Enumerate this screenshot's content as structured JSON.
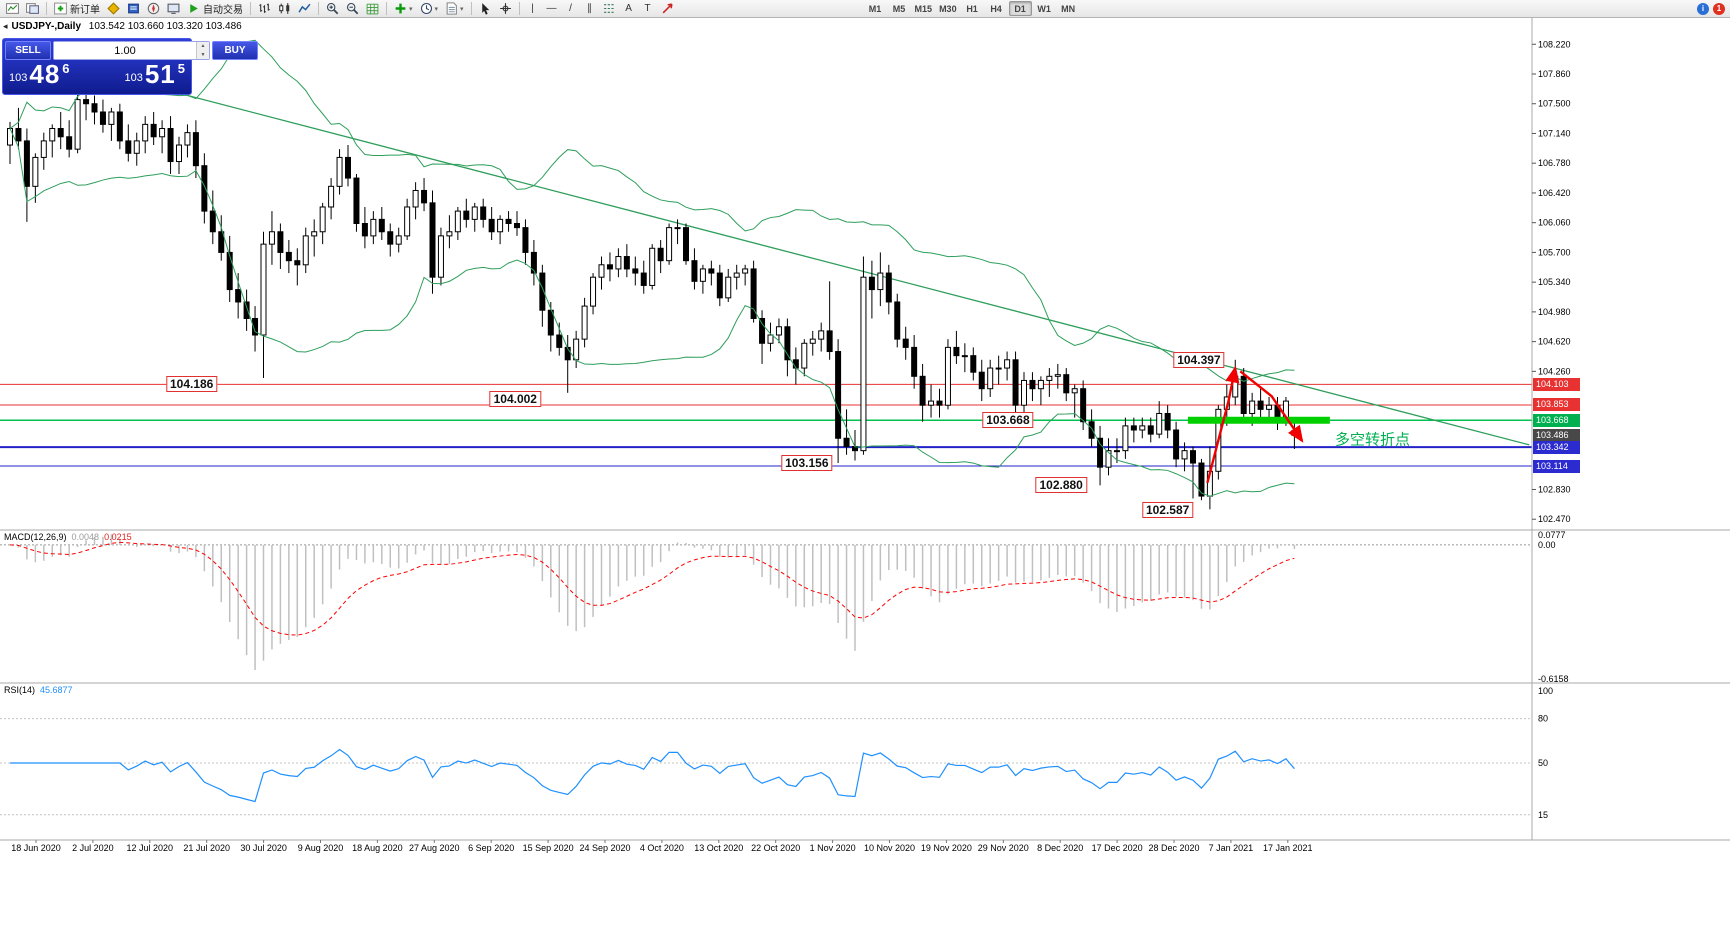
{
  "toolbar": {
    "items": [
      {
        "name": "new-chart-button",
        "kind": "svg",
        "icon": "chart-window"
      },
      {
        "name": "chart-profiles-button",
        "kind": "svg",
        "icon": "profiles"
      },
      {
        "name": "sep1",
        "kind": "sep"
      },
      {
        "name": "new-order-button",
        "kind": "labeled",
        "icon": "order",
        "label": "新订单"
      },
      {
        "name": "market-watch-button",
        "kind": "svg",
        "icon": "diamond"
      },
      {
        "name": "data-window-button",
        "kind": "svg",
        "icon": "databook"
      },
      {
        "name": "navigator-button",
        "kind": "svg",
        "icon": "compass"
      },
      {
        "name": "terminal-button",
        "kind": "svg",
        "icon": "terminal"
      },
      {
        "name": "autotrade-button",
        "kind": "labeled",
        "icon": "play",
        "label": "自动交易"
      },
      {
        "name": "sep2",
        "kind": "sep"
      },
      {
        "name": "bar-chart-button",
        "kind": "svg",
        "icon": "bars"
      },
      {
        "name": "candle-chart-button",
        "kind": "svg",
        "icon": "candles"
      },
      {
        "name": "line-chart-button",
        "kind": "svg",
        "icon": "polyline"
      },
      {
        "name": "sep3",
        "kind": "sep"
      },
      {
        "name": "zoom-in-button",
        "kind": "svg",
        "icon": "zoom-in"
      },
      {
        "name": "zoom-out-button",
        "kind": "svg",
        "icon": "zoom-out"
      },
      {
        "name": "tile-windows-button",
        "kind": "svg",
        "icon": "grid"
      },
      {
        "name": "sep4",
        "kind": "sep"
      },
      {
        "name": "indicators-button",
        "kind": "svg",
        "icon": "plus-green",
        "dd": true
      },
      {
        "name": "periods-button",
        "kind": "svg",
        "icon": "clock",
        "dd": true
      },
      {
        "name": "templates-button",
        "kind": "svg",
        "icon": "template",
        "dd": true
      },
      {
        "name": "sep5",
        "kind": "sep"
      },
      {
        "name": "cursor-button",
        "kind": "svg",
        "icon": "cursor"
      },
      {
        "name": "crosshair-button",
        "kind": "svg",
        "icon": "crosshair"
      },
      {
        "name": "sep6",
        "kind": "sep"
      },
      {
        "name": "vertical-line-button",
        "kind": "glyph",
        "glyph": "|"
      },
      {
        "name": "horizontal-line-button",
        "kind": "glyph",
        "glyph": "—"
      },
      {
        "name": "trendline-button",
        "kind": "glyph",
        "glyph": "/"
      },
      {
        "name": "channel-button",
        "kind": "glyph",
        "glyph": "∥"
      },
      {
        "name": "fibonacci-button",
        "kind": "svg",
        "icon": "fibo"
      },
      {
        "name": "text-button",
        "kind": "glyph",
        "glyph": "A"
      },
      {
        "name": "label-button",
        "kind": "glyph",
        "glyph": "T"
      },
      {
        "name": "arrows-button",
        "kind": "svg",
        "icon": "arrow-ne"
      }
    ],
    "timeframes": [
      "M1",
      "M5",
      "M15",
      "M30",
      "H1",
      "H4",
      "D1",
      "W1",
      "MN"
    ],
    "active_timeframe": "D1",
    "notification_count": "1"
  },
  "chart_header": {
    "symbol_period": "USDJPY-,Daily",
    "ohlc": "103.542 103.660 103.320 103.486"
  },
  "trade_panel": {
    "collapse_glyph": "◂",
    "sell_label": "SELL",
    "buy_label": "BUY",
    "volume": "1.00",
    "bid_prefix": "103",
    "bid_big": "48",
    "bid_sup": "6",
    "ask_prefix": "103",
    "ask_big": "51",
    "ask_sup": "5"
  },
  "price_axis": {
    "ticks": [
      "108.220",
      "107.860",
      "107.500",
      "107.140",
      "106.780",
      "106.420",
      "106.060",
      "105.700",
      "105.340",
      "104.980",
      "104.620",
      "104.260",
      "102.830",
      "102.470"
    ],
    "highlights": [
      {
        "text": "104.103",
        "bg": "#e83232"
      },
      {
        "text": "103.853",
        "bg": "#e83232"
      },
      {
        "text": "103.668",
        "bg": "#00b050"
      },
      {
        "text": "103.486",
        "bg": "#484848"
      },
      {
        "text": "103.342",
        "bg": "#2b2bd0"
      },
      {
        "text": "103.114",
        "bg": "#2b2bd0"
      }
    ]
  },
  "macd": {
    "label": "MACD(12,26,9)",
    "value_main": "0.0048",
    "value_signal": "0.0215",
    "axis": [
      "0.0777",
      "0.00",
      "-0.6158"
    ]
  },
  "rsi": {
    "label": "RSI(14)",
    "value": "45.6877",
    "axis_top": "100",
    "levels": [
      80,
      50,
      15
    ]
  },
  "date_axis": [
    "18 Jun 2020",
    "2 Jul 2020",
    "12 Jul 2020",
    "21 Jul 2020",
    "30 Jul 2020",
    "9 Aug 2020",
    "18 Aug 2020",
    "27 Aug 2020",
    "6 Sep 2020",
    "15 Sep 2020",
    "24 Sep 2020",
    "4 Oct 2020",
    "13 Oct 2020",
    "22 Oct 2020",
    "1 Nov 2020",
    "10 Nov 2020",
    "19 Nov 2020",
    "29 Nov 2020",
    "8 Dec 2020",
    "17 Dec 2020",
    "28 Dec 2020",
    "7 Jan 2021",
    "17 Jan 2021"
  ],
  "chart_data": {
    "type": "candlestick",
    "symbol": "USDJPY-",
    "period": "Daily",
    "current_ohlc": {
      "open": 103.542,
      "high": 103.66,
      "low": 103.32,
      "close": 103.486
    },
    "colors": {
      "bollinger": "#2e9e5b",
      "candle_up": "#ffffff",
      "candle_down": "#000000",
      "macd_hist": "#c0c0c0",
      "macd_signal": "#ff0000",
      "rsi_line": "#1e90ff",
      "annotation": "#f00000"
    },
    "candles": [
      [
        107.0,
        107.28,
        106.77,
        107.2
      ],
      [
        107.2,
        107.45,
        106.95,
        107.05
      ],
      [
        107.05,
        107.2,
        106.07,
        106.5
      ],
      [
        106.5,
        106.9,
        106.3,
        106.85
      ],
      [
        106.85,
        107.15,
        106.7,
        107.05
      ],
      [
        107.05,
        107.25,
        106.85,
        107.2
      ],
      [
        107.2,
        107.4,
        106.95,
        107.1
      ],
      [
        107.1,
        107.3,
        106.85,
        106.95
      ],
      [
        106.95,
        107.65,
        106.9,
        107.55
      ],
      [
        107.55,
        107.7,
        107.3,
        107.5
      ],
      [
        107.5,
        107.6,
        107.25,
        107.4
      ],
      [
        107.4,
        107.55,
        107.15,
        107.25
      ],
      [
        107.25,
        107.45,
        107.05,
        107.4
      ],
      [
        107.4,
        107.5,
        106.95,
        107.05
      ],
      [
        107.05,
        107.25,
        106.8,
        106.9
      ],
      [
        106.9,
        107.15,
        106.75,
        107.05
      ],
      [
        107.05,
        107.35,
        106.9,
        107.25
      ],
      [
        107.25,
        107.4,
        107.0,
        107.1
      ],
      [
        107.1,
        107.3,
        106.9,
        107.2
      ],
      [
        107.2,
        107.35,
        106.65,
        106.8
      ],
      [
        106.8,
        107.1,
        106.65,
        107.0
      ],
      [
        107.0,
        107.25,
        106.85,
        107.15
      ],
      [
        107.15,
        107.3,
        106.6,
        106.75
      ],
      [
        106.75,
        106.9,
        106.05,
        106.2
      ],
      [
        106.2,
        106.45,
        105.8,
        105.95
      ],
      [
        105.95,
        106.15,
        105.6,
        105.7
      ],
      [
        105.7,
        105.9,
        105.1,
        105.25
      ],
      [
        105.25,
        105.45,
        104.9,
        105.1
      ],
      [
        105.1,
        105.25,
        104.75,
        104.9
      ],
      [
        104.9,
        105.05,
        104.5,
        104.7
      ],
      [
        104.7,
        105.95,
        104.18,
        105.8
      ],
      [
        105.8,
        106.2,
        105.55,
        105.95
      ],
      [
        105.95,
        106.05,
        105.5,
        105.7
      ],
      [
        105.7,
        105.85,
        105.45,
        105.6
      ],
      [
        105.6,
        105.75,
        105.3,
        105.55
      ],
      [
        105.55,
        106.0,
        105.45,
        105.9
      ],
      [
        105.9,
        106.1,
        105.65,
        105.95
      ],
      [
        105.95,
        106.3,
        105.8,
        106.25
      ],
      [
        106.25,
        106.6,
        106.1,
        106.5
      ],
      [
        106.5,
        106.95,
        106.4,
        106.85
      ],
      [
        106.85,
        107.0,
        106.5,
        106.6
      ],
      [
        106.6,
        106.65,
        105.95,
        106.05
      ],
      [
        106.05,
        106.25,
        105.75,
        105.9
      ],
      [
        105.9,
        106.2,
        105.8,
        106.1
      ],
      [
        106.1,
        106.25,
        105.85,
        105.95
      ],
      [
        105.95,
        106.05,
        105.65,
        105.8
      ],
      [
        105.8,
        106.0,
        105.7,
        105.9
      ],
      [
        105.9,
        106.35,
        105.85,
        106.25
      ],
      [
        106.25,
        106.55,
        106.1,
        106.45
      ],
      [
        106.45,
        106.6,
        106.2,
        106.3
      ],
      [
        106.3,
        106.45,
        105.2,
        105.4
      ],
      [
        105.4,
        106.0,
        105.3,
        105.9
      ],
      [
        105.9,
        106.15,
        105.75,
        105.95
      ],
      [
        105.95,
        106.25,
        105.85,
        106.2
      ],
      [
        106.2,
        106.35,
        106.0,
        106.1
      ],
      [
        106.1,
        106.3,
        105.95,
        106.25
      ],
      [
        106.25,
        106.35,
        106.0,
        106.1
      ],
      [
        106.1,
        106.25,
        105.85,
        105.95
      ],
      [
        105.95,
        106.15,
        105.8,
        106.1
      ],
      [
        106.1,
        106.2,
        105.95,
        106.05
      ],
      [
        106.05,
        106.2,
        105.9,
        106.0
      ],
      [
        106.0,
        106.1,
        105.55,
        105.7
      ],
      [
        105.7,
        105.85,
        105.3,
        105.45
      ],
      [
        105.45,
        105.55,
        104.8,
        105.0
      ],
      [
        105.0,
        105.1,
        104.5,
        104.7
      ],
      [
        104.7,
        104.85,
        104.45,
        104.55
      ],
      [
        104.55,
        104.7,
        104.0,
        104.4
      ],
      [
        104.4,
        104.75,
        104.3,
        104.65
      ],
      [
        104.65,
        105.15,
        104.55,
        105.05
      ],
      [
        105.05,
        105.45,
        104.95,
        105.4
      ],
      [
        105.4,
        105.65,
        105.25,
        105.55
      ],
      [
        105.55,
        105.7,
        105.35,
        105.5
      ],
      [
        105.5,
        105.75,
        105.4,
        105.65
      ],
      [
        105.65,
        105.8,
        105.4,
        105.5
      ],
      [
        105.5,
        105.65,
        105.3,
        105.45
      ],
      [
        105.45,
        105.6,
        105.2,
        105.3
      ],
      [
        105.3,
        105.8,
        105.25,
        105.75
      ],
      [
        105.75,
        105.85,
        105.45,
        105.6
      ],
      [
        105.6,
        106.05,
        105.55,
        106.0
      ],
      [
        106.0,
        106.1,
        105.8,
        106.0
      ],
      [
        106.0,
        106.05,
        105.55,
        105.6
      ],
      [
        105.6,
        105.75,
        105.25,
        105.35
      ],
      [
        105.35,
        105.55,
        105.2,
        105.5
      ],
      [
        105.5,
        105.6,
        105.3,
        105.45
      ],
      [
        105.45,
        105.55,
        105.05,
        105.15
      ],
      [
        105.15,
        105.5,
        105.1,
        105.4
      ],
      [
        105.4,
        105.55,
        105.25,
        105.45
      ],
      [
        105.45,
        105.55,
        105.3,
        105.5
      ],
      [
        105.5,
        105.6,
        104.85,
        104.9
      ],
      [
        104.9,
        105.0,
        104.35,
        104.6
      ],
      [
        104.6,
        104.85,
        104.5,
        104.7
      ],
      [
        104.7,
        104.9,
        104.6,
        104.8
      ],
      [
        104.8,
        104.9,
        104.2,
        104.4
      ],
      [
        104.4,
        104.55,
        104.1,
        104.3
      ],
      [
        104.3,
        104.65,
        104.2,
        104.6
      ],
      [
        104.6,
        104.75,
        104.45,
        104.65
      ],
      [
        104.65,
        104.85,
        104.5,
        104.75
      ],
      [
        104.75,
        105.35,
        104.4,
        104.5
      ],
      [
        104.5,
        104.65,
        103.15,
        103.45
      ],
      [
        103.45,
        103.8,
        103.25,
        103.35
      ],
      [
        103.35,
        103.55,
        103.18,
        103.3
      ],
      [
        103.3,
        105.65,
        103.25,
        105.4
      ],
      [
        105.4,
        105.6,
        104.9,
        105.25
      ],
      [
        105.25,
        105.7,
        105.05,
        105.45
      ],
      [
        105.45,
        105.55,
        104.95,
        105.1
      ],
      [
        105.1,
        105.2,
        104.55,
        104.65
      ],
      [
        104.65,
        104.8,
        104.4,
        104.55
      ],
      [
        104.55,
        104.7,
        104.05,
        104.2
      ],
      [
        104.2,
        104.35,
        103.65,
        103.85
      ],
      [
        103.85,
        104.1,
        103.7,
        103.9
      ],
      [
        103.9,
        104.05,
        103.7,
        103.85
      ],
      [
        103.85,
        104.65,
        103.8,
        104.55
      ],
      [
        104.55,
        104.75,
        104.35,
        104.45
      ],
      [
        104.45,
        104.6,
        104.25,
        104.45
      ],
      [
        104.45,
        104.55,
        104.15,
        104.25
      ],
      [
        104.25,
        104.4,
        103.9,
        104.05
      ],
      [
        104.05,
        104.4,
        103.95,
        104.3
      ],
      [
        104.3,
        104.45,
        104.1,
        104.3
      ],
      [
        104.3,
        104.5,
        104.15,
        104.4
      ],
      [
        104.4,
        104.5,
        103.65,
        103.85
      ],
      [
        103.85,
        104.25,
        103.75,
        104.15
      ],
      [
        104.15,
        104.25,
        103.9,
        104.05
      ],
      [
        104.05,
        104.2,
        103.85,
        104.15
      ],
      [
        104.15,
        104.3,
        103.95,
        104.2
      ],
      [
        104.2,
        104.35,
        104.05,
        104.22
      ],
      [
        104.22,
        104.3,
        103.9,
        104.0
      ],
      [
        104.0,
        104.1,
        103.7,
        104.05
      ],
      [
        104.05,
        104.15,
        103.55,
        103.65
      ],
      [
        103.65,
        103.8,
        103.35,
        103.45
      ],
      [
        103.45,
        103.6,
        102.88,
        103.1
      ],
      [
        103.1,
        103.45,
        103.0,
        103.3
      ],
      [
        103.3,
        103.45,
        103.15,
        103.3
      ],
      [
        103.3,
        103.7,
        103.2,
        103.6
      ],
      [
        103.6,
        103.7,
        103.4,
        103.55
      ],
      [
        103.55,
        103.7,
        103.45,
        103.6
      ],
      [
        103.6,
        103.7,
        103.4,
        103.5
      ],
      [
        103.5,
        103.9,
        103.45,
        103.75
      ],
      [
        103.75,
        103.85,
        103.45,
        103.55
      ],
      [
        103.55,
        103.65,
        103.1,
        103.2
      ],
      [
        103.2,
        103.4,
        103.05,
        103.3
      ],
      [
        103.3,
        103.35,
        102.72,
        103.15
      ],
      [
        103.15,
        103.2,
        102.7,
        102.75
      ],
      [
        102.75,
        103.35,
        102.59,
        103.05
      ],
      [
        103.05,
        103.85,
        102.95,
        103.8
      ],
      [
        103.8,
        104.1,
        103.6,
        103.95
      ],
      [
        103.95,
        104.4,
        103.85,
        104.2
      ],
      [
        104.2,
        104.3,
        103.65,
        103.75
      ],
      [
        103.75,
        104.0,
        103.6,
        103.9
      ],
      [
        103.9,
        104.05,
        103.7,
        103.8
      ],
      [
        103.8,
        103.95,
        103.65,
        103.85
      ],
      [
        103.85,
        103.95,
        103.55,
        103.7
      ],
      [
        103.7,
        103.95,
        103.6,
        103.9
      ],
      [
        103.542,
        103.66,
        103.32,
        103.486
      ]
    ],
    "bollinger": {
      "period": 20,
      "deviation": 2
    },
    "hlines": [
      {
        "price": 104.103,
        "color": "#e83232",
        "width": 1
      },
      {
        "price": 103.853,
        "color": "#e83232",
        "width": 1
      },
      {
        "price": 103.668,
        "color": "#00c050",
        "width": 1.4
      },
      {
        "price": 103.342,
        "color": "#2222c8",
        "width": 2
      },
      {
        "price": 103.114,
        "color": "#2222c8",
        "width": 1
      }
    ],
    "trendline": {
      "i1": 15.4,
      "p1": 107.75,
      "i2": 179.8,
      "p2": 103.37
    },
    "highlight_segment": {
      "i1": 139.4,
      "i2": 156.2,
      "price": 103.668,
      "color": "#00d000"
    },
    "callouts": [
      {
        "text": "104.186",
        "i": 21.5,
        "p": 104.103
      },
      {
        "text": "104.002",
        "i": 59.8,
        "p": 103.93
      },
      {
        "text": "103.668",
        "i": 118.1,
        "p": 103.668
      },
      {
        "text": "103.156",
        "i": 94.3,
        "p": 103.156
      },
      {
        "text": "102.880",
        "i": 124.4,
        "p": 102.88
      },
      {
        "text": "102.587",
        "i": 137.0,
        "p": 102.587
      },
      {
        "text": "104.397",
        "i": 140.7,
        "p": 104.397
      }
    ],
    "arrows": [
      {
        "pts": [
          [
            141.7,
            102.91
          ],
          [
            144.2,
            103.9
          ],
          [
            145.0,
            104.3
          ]
        ]
      },
      {
        "pts": [
          [
            145.6,
            104.26
          ],
          [
            149.3,
            103.96
          ],
          [
            152.9,
            103.42
          ]
        ]
      }
    ],
    "note": {
      "text": "多空转折点",
      "i": 156.8,
      "p": 103.44
    }
  }
}
